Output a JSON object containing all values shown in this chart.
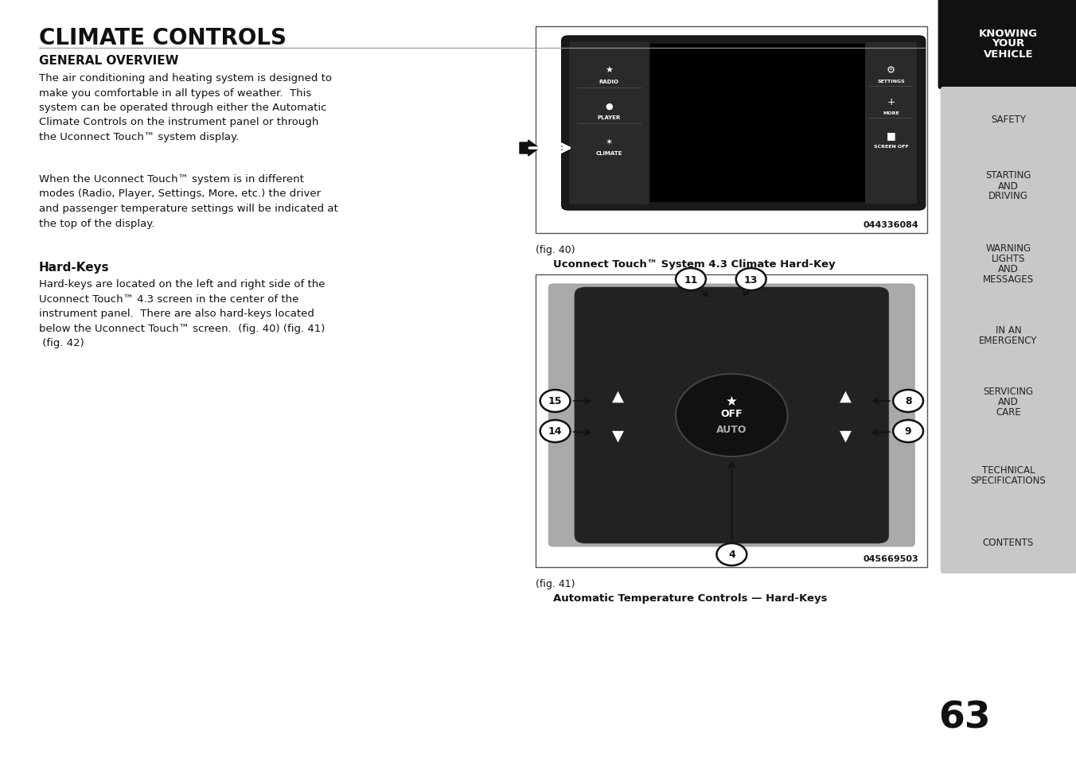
{
  "page_bg": "#ffffff",
  "page_number": "63",
  "title": "CLIMATE CONTROLS",
  "section1_title": "GENERAL OVERVIEW",
  "section1_para1": "The air conditioning and heating system is designed to\nmake you comfortable in all types of weather.  This\nsystem can be operated through either the Automatic\nClimate Controls on the instrument panel or through\nthe Uconnect Touch™ system display.",
  "section1_para2": "When the Uconnect Touch™ system is in different\nmodes (Radio, Player, Settings, More, etc.) the driver\nand passenger temperature settings will be indicated at\nthe top of the display.",
  "section2_title": "Hard-Keys",
  "section2_para": "Hard-keys are located on the left and right side of the\nUconnect Touch™ 4.3 screen in the center of the\ninstrument panel.  There are also hard-keys located\nbelow the Uconnect Touch™ screen.  (fig. 40) (fig. 41)\n (fig. 42)",
  "fig40_caption": "(fig. 40)",
  "fig40_subcaption": "Uconnect Touch™ System 4.3 Climate Hard-Key",
  "fig40_code": "044336084",
  "fig41_caption": "(fig. 41)",
  "fig41_subcaption": "Automatic Temperature Controls — Hard-Keys",
  "fig41_code": "045669503",
  "sidebar_items": [
    {
      "text": "KNOWING\nYOUR\nVEHICLE",
      "active": true
    },
    {
      "text": "SAFETY",
      "active": false
    },
    {
      "text": "STARTING\nAND\nDRIVING",
      "active": false
    },
    {
      "text": "WARNING\nLIGHTS\nAND\nMESSAGES",
      "active": false
    },
    {
      "text": "IN AN\nEMERGENCY",
      "active": false
    },
    {
      "text": "SERVICING\nAND\nCARE",
      "active": false
    },
    {
      "text": "TECHNICAL\nSPECIFICATIONS",
      "active": false
    },
    {
      "text": "CONTENTS",
      "active": false
    }
  ]
}
